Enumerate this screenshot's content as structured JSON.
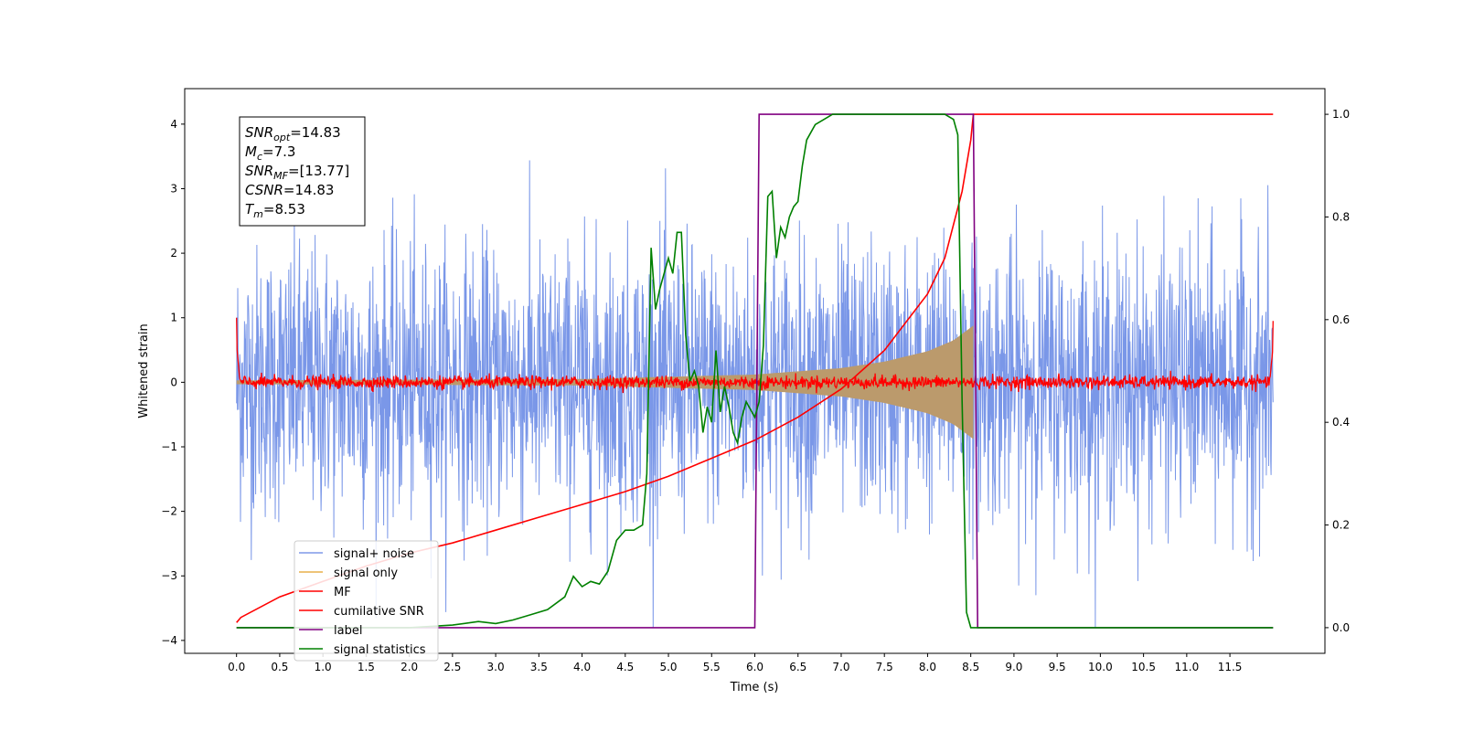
{
  "chart_data": {
    "type": "line",
    "xlabel": "Time (s)",
    "ylabel": "Whitened strain",
    "xlim": [
      -0.6,
      12.6
    ],
    "ylim": [
      -4.2,
      4.55
    ],
    "ylim_right": [
      -0.05,
      1.05
    ],
    "x_ticks": [
      "0.0",
      "0.5",
      "1.0",
      "1.5",
      "2.0",
      "2.5",
      "3.0",
      "3.5",
      "4.0",
      "4.5",
      "5.0",
      "5.5",
      "6.0",
      "6.5",
      "7.0",
      "7.5",
      "8.0",
      "8.5",
      "9.0",
      "9.5",
      "10.0",
      "10.5",
      "11.0",
      "11.5"
    ],
    "y_ticks_left": [
      4,
      3,
      2,
      1,
      0,
      -1,
      -2,
      -3,
      -4
    ],
    "y_tick_labels_left": [
      "4",
      "3",
      "2",
      "1",
      "0",
      "−1",
      "−2",
      "−3",
      "−4"
    ],
    "y_ticks_right": [
      1.0,
      0.8,
      0.6,
      0.4,
      0.2,
      0.0
    ],
    "y_tick_labels_right": [
      "1.0",
      "0.8",
      "0.6",
      "0.4",
      "0.2",
      "0.0"
    ],
    "grid": false,
    "legend_position": "lower-left",
    "annotation": {
      "lines": [
        {
          "base": "SNR",
          "sub": "opt",
          "rest": "=14.83"
        },
        {
          "base": "M",
          "sub": "c",
          "rest": "=7.3"
        },
        {
          "base": "SNR",
          "sub": "MF",
          "rest": "=[13.77]"
        },
        {
          "base": "CSNR",
          "sub": "",
          "rest": "=14.83"
        },
        {
          "base": "T",
          "sub": "m",
          "rest": "=8.53"
        }
      ]
    },
    "series": [
      {
        "name": "signal+ noise",
        "axis": "left",
        "color": "#6f8ee6",
        "kind": "noise",
        "x_range": [
          0,
          12
        ],
        "amplitude_std": 1.0,
        "peak_range": [
          -3.8,
          4.2
        ]
      },
      {
        "name": "signal only",
        "axis": "left",
        "color": "#e8b04a",
        "kind": "chirp",
        "x_range": [
          0,
          8.53
        ],
        "envelope": {
          "x": [
            0,
            4,
            6,
            7,
            7.5,
            8,
            8.3,
            8.5,
            8.53
          ],
          "y": [
            0.03,
            0.05,
            0.12,
            0.22,
            0.32,
            0.48,
            0.65,
            0.85,
            0.88
          ]
        }
      },
      {
        "name": "MF",
        "axis": "left",
        "color": "#ff0000",
        "kind": "mf_noise",
        "x_range": [
          0,
          12
        ],
        "amplitude_std": 0.05,
        "edge_values": {
          "start": 1.0,
          "end": 0.95
        }
      },
      {
        "name": "cumilative SNR",
        "axis": "right",
        "color": "#ff0000",
        "x": [
          0,
          0.05,
          0.5,
          1,
          1.5,
          2,
          2.5,
          3,
          3.5,
          4,
          4.5,
          5,
          5.5,
          6,
          6.5,
          7,
          7.5,
          8,
          8.2,
          8.4,
          8.5,
          8.53,
          9,
          10,
          11,
          12
        ],
        "y": [
          0.01,
          0.02,
          0.06,
          0.09,
          0.12,
          0.145,
          0.165,
          0.19,
          0.215,
          0.24,
          0.265,
          0.295,
          0.33,
          0.365,
          0.41,
          0.465,
          0.54,
          0.65,
          0.72,
          0.85,
          0.95,
          1.0,
          1.0,
          1.0,
          1.0,
          1.0
        ]
      },
      {
        "name": "label",
        "axis": "right",
        "color": "#800080",
        "x": [
          0,
          6.0,
          6.05,
          8.53,
          8.58,
          12
        ],
        "y": [
          0,
          0,
          1,
          1,
          0,
          0
        ]
      },
      {
        "name": "signal statistics",
        "axis": "right",
        "color": "#008000",
        "x": [
          0,
          1,
          2,
          2.5,
          2.8,
          3.0,
          3.2,
          3.4,
          3.6,
          3.8,
          3.9,
          4.0,
          4.1,
          4.2,
          4.3,
          4.4,
          4.5,
          4.6,
          4.7,
          4.75,
          4.8,
          4.85,
          4.9,
          5.0,
          5.05,
          5.1,
          5.15,
          5.2,
          5.25,
          5.3,
          5.35,
          5.4,
          5.45,
          5.5,
          5.55,
          5.6,
          5.65,
          5.7,
          5.75,
          5.8,
          5.85,
          5.9,
          6.0,
          6.05,
          6.1,
          6.15,
          6.2,
          6.25,
          6.3,
          6.35,
          6.4,
          6.45,
          6.5,
          6.55,
          6.6,
          6.7,
          6.8,
          6.9,
          7.0,
          7.2,
          7.5,
          7.8,
          8.0,
          8.2,
          8.3,
          8.35,
          8.4,
          8.45,
          8.5,
          8.55,
          8.6,
          9,
          10,
          11,
          12
        ],
        "y": [
          0,
          0,
          0,
          0.005,
          0.012,
          0.008,
          0.015,
          0.025,
          0.035,
          0.06,
          0.1,
          0.08,
          0.09,
          0.085,
          0.11,
          0.17,
          0.19,
          0.19,
          0.2,
          0.3,
          0.74,
          0.62,
          0.66,
          0.72,
          0.69,
          0.77,
          0.77,
          0.57,
          0.48,
          0.5,
          0.47,
          0.38,
          0.43,
          0.4,
          0.54,
          0.42,
          0.47,
          0.43,
          0.38,
          0.36,
          0.41,
          0.44,
          0.41,
          0.44,
          0.55,
          0.84,
          0.85,
          0.72,
          0.78,
          0.76,
          0.8,
          0.82,
          0.83,
          0.9,
          0.95,
          0.98,
          0.99,
          1.0,
          1.0,
          1.0,
          1.0,
          1.0,
          1.0,
          1.0,
          0.99,
          0.96,
          0.44,
          0.03,
          0.0,
          0.0,
          0.0,
          0,
          0,
          0,
          0
        ]
      }
    ]
  }
}
